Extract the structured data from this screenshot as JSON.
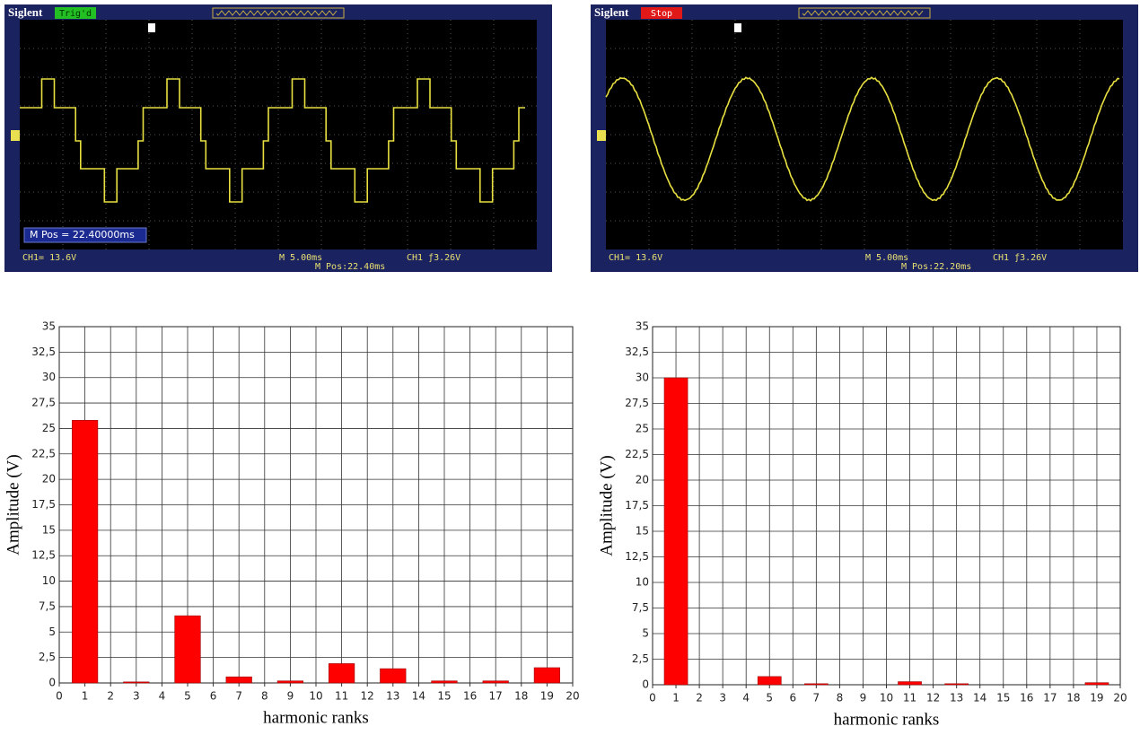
{
  "scopes": [
    {
      "brand": "Siglent",
      "status": "Trig'd",
      "mpos_box": "M Pos = 22.40000ms",
      "ch1_scale": "CH1= 13.6V",
      "timebase": "M 5.00ms",
      "mpos": "M Pos:22.40ms",
      "trigger": "CH1 ƒ3.26V"
    },
    {
      "brand": "Siglent",
      "status": "Stop",
      "ch1_scale": "CH1= 13.6V",
      "timebase": "M 5.00ms",
      "mpos": "M Pos:22.20ms",
      "trigger": "CH1 ƒ3.26V"
    }
  ],
  "chart_data": [
    {
      "type": "bar",
      "x_label": "harmonic ranks",
      "y_label": "Amplitude (V)",
      "color": "#ff0000",
      "x": [
        1,
        3,
        5,
        7,
        9,
        11,
        13,
        15,
        17,
        19
      ],
      "values": [
        25.8,
        0.1,
        6.6,
        0.6,
        0.2,
        1.9,
        1.4,
        0.2,
        0.2,
        1.5
      ],
      "xlim": [
        0,
        20
      ],
      "xticks": [
        0,
        1,
        2,
        3,
        4,
        5,
        6,
        7,
        8,
        9,
        10,
        11,
        12,
        13,
        14,
        15,
        16,
        17,
        18,
        19,
        20
      ],
      "ylim": [
        0,
        35
      ],
      "yticks": [
        0,
        {
          "value": 2.5,
          "label": "2,5"
        },
        5,
        {
          "value": 7.5,
          "label": "7,5"
        },
        10,
        {
          "value": 12.5,
          "label": "12,5"
        },
        15,
        {
          "value": 17.5,
          "label": "17,5"
        },
        20,
        {
          "value": 22.5,
          "label": "22,5"
        },
        25,
        {
          "value": 27.5,
          "label": "27,5"
        },
        30,
        {
          "value": 32.5,
          "label": "32,5"
        },
        35
      ],
      "grid": true
    },
    {
      "type": "bar",
      "x_label": "harmonic ranks",
      "y_label": "Amplitude (V)",
      "color": "#ff0000",
      "x": [
        1,
        3,
        5,
        7,
        9,
        11,
        13,
        15,
        17,
        19
      ],
      "values": [
        30,
        0,
        0.8,
        0.1,
        0,
        0.3,
        0.1,
        0,
        0,
        0.2
      ],
      "xlim": [
        0,
        20
      ],
      "xticks": [
        0,
        1,
        2,
        3,
        4,
        5,
        6,
        7,
        8,
        9,
        10,
        11,
        12,
        13,
        14,
        15,
        16,
        17,
        18,
        19,
        20
      ],
      "ylim": [
        0,
        35
      ],
      "yticks": [
        0,
        {
          "value": 2.5,
          "label": "2,5"
        },
        5,
        {
          "value": 7.5,
          "label": "7,5"
        },
        10,
        {
          "value": 12.5,
          "label": "12,5"
        },
        15,
        {
          "value": 17.5,
          "label": "17,5"
        },
        20,
        {
          "value": 22.5,
          "label": "22,5"
        },
        25,
        {
          "value": 27.5,
          "label": "27,5"
        },
        30,
        {
          "value": 32.5,
          "label": "32,5"
        },
        35
      ],
      "grid": true
    }
  ]
}
